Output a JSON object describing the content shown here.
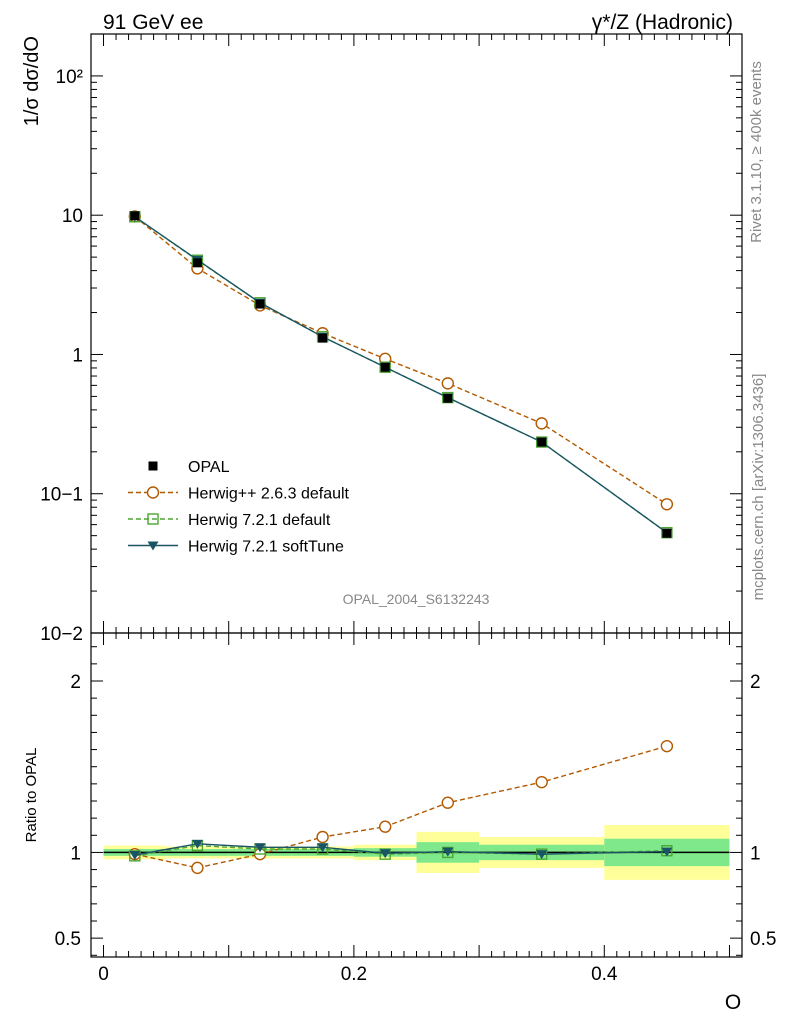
{
  "header": {
    "left_title": "91 GeV ee",
    "right_title": "γ*/Z (Hadronic)"
  },
  "side_labels": {
    "rivet": "Rivet 3.1.10, ≥ 400k events",
    "mcplots": "mcplots.cern.ch [arXiv:1306.3436]"
  },
  "watermark": "OPAL_2004_S6132243",
  "colors": {
    "herwigpp": "#b35900",
    "herwig721": "#4da633",
    "softtune": "#1a5566",
    "band_green": "#7fe88a",
    "band_yellow": "#ffff99"
  },
  "chart_data": [
    {
      "type": "line",
      "title": "",
      "xlabel": "",
      "ylabel": "1/σ dσ/dO",
      "yscale": "log",
      "ylim": [
        0.01,
        200
      ],
      "xlim": [
        -0.01,
        0.51
      ],
      "ytick_labels": [
        "10−2",
        "10−1",
        "1",
        "10",
        "10²"
      ],
      "legend_position": "center-left",
      "x": [
        0.025,
        0.075,
        0.125,
        0.175,
        0.225,
        0.275,
        0.35,
        0.45
      ],
      "bin_edges": [
        0.0,
        0.05,
        0.1,
        0.15,
        0.2,
        0.25,
        0.3,
        0.4,
        0.5
      ],
      "series": [
        {
          "name": "OPAL",
          "style": "data",
          "values": [
            9.9,
            4.55,
            2.3,
            1.31,
            0.81,
            0.485,
            0.235,
            0.052
          ]
        },
        {
          "name": "Herwig++ 2.6.3 default",
          "style": "dashed-circle",
          "values": [
            9.8,
            4.15,
            2.25,
            1.42,
            0.93,
            0.62,
            0.32,
            0.084
          ]
        },
        {
          "name": "Herwig 7.2.1 default",
          "style": "dashed-square",
          "values": [
            9.75,
            4.75,
            2.35,
            1.34,
            0.81,
            0.49,
            0.235,
            0.0525
          ]
        },
        {
          "name": "Herwig 7.2.1 softTune",
          "style": "solid-triangle",
          "values": [
            9.75,
            4.78,
            2.35,
            1.34,
            0.81,
            0.49,
            0.235,
            0.0525
          ]
        }
      ]
    },
    {
      "type": "line",
      "title": "",
      "xlabel": "O",
      "ylabel": "Ratio to OPAL",
      "ylim": [
        0.39,
        2.28
      ],
      "xlim": [
        -0.01,
        0.51
      ],
      "ytick_labels": [
        "0.5",
        "1",
        "2"
      ],
      "xtick_labels": [
        "0",
        "0.2",
        "0.4"
      ],
      "x": [
        0.025,
        0.075,
        0.125,
        0.175,
        0.225,
        0.275,
        0.35,
        0.45
      ],
      "bin_edges": [
        0.0,
        0.05,
        0.1,
        0.15,
        0.2,
        0.25,
        0.3,
        0.4,
        0.5
      ],
      "band_green": [
        0.02,
        0.02,
        0.02,
        0.02,
        0.025,
        0.06,
        0.045,
        0.08
      ],
      "band_yellow": [
        0.04,
        0.035,
        0.035,
        0.035,
        0.045,
        0.12,
        0.09,
        0.16
      ],
      "series": [
        {
          "name": "Herwig++ 2.6.3 default",
          "style": "dashed-circle",
          "values": [
            0.99,
            0.91,
            0.99,
            1.09,
            1.15,
            1.29,
            1.41,
            1.62
          ]
        },
        {
          "name": "Herwig 7.2.1 default",
          "style": "dashed-square",
          "values": [
            0.98,
            1.04,
            1.02,
            1.02,
            0.99,
            1.0,
            0.99,
            1.01
          ]
        },
        {
          "name": "Herwig 7.2.1 softTune",
          "style": "solid-triangle",
          "values": [
            0.985,
            1.05,
            1.03,
            1.03,
            0.995,
            1.005,
            0.99,
            1.005
          ]
        }
      ]
    }
  ]
}
